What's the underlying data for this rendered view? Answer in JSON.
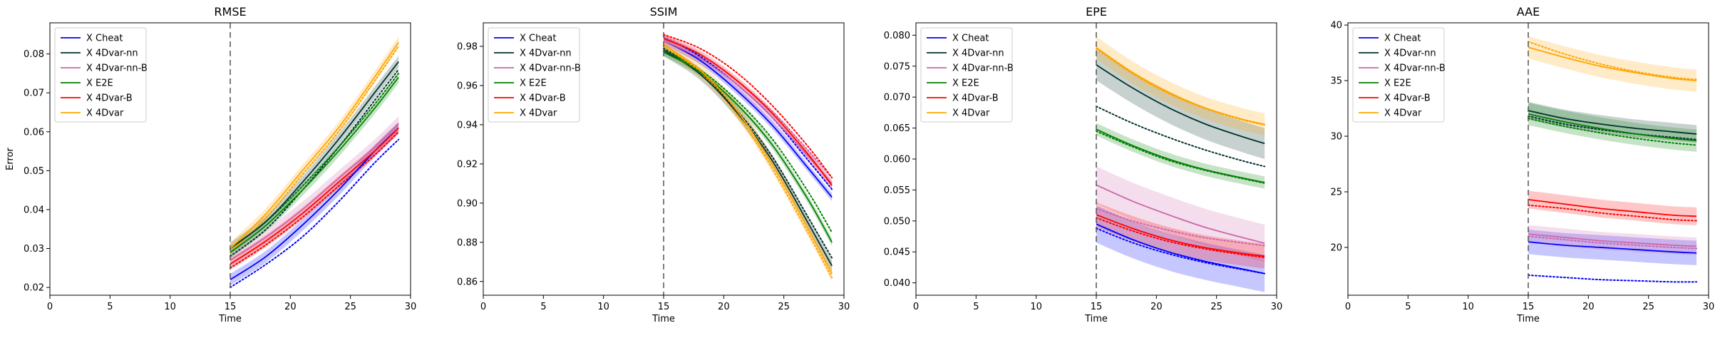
{
  "colors": {
    "Cheat": "#0000ff",
    "4Dvar-nn": "#00332b",
    "4Dvar-nn-B": "#cc66aa",
    "E2E": "#008000",
    "4Dvar-B": "#ff0000",
    "4Dvar": "#ffa500"
  },
  "chart_data": [
    {
      "type": "line",
      "title": "RMSE",
      "xlabel": "Time",
      "ylabel": "Error",
      "xlim": [
        0,
        30
      ],
      "ylim": [
        0.018,
        0.088
      ],
      "xticks": [
        0,
        5,
        10,
        15,
        20,
        25,
        30
      ],
      "yticks": [
        0.02,
        0.03,
        0.04,
        0.05,
        0.06,
        0.07,
        0.08
      ],
      "ytick_labels": [
        "0.02",
        "0.03",
        "0.04",
        "0.05",
        "0.06",
        "0.07",
        "0.08"
      ],
      "vline_x": 15,
      "legend": [
        "X Cheat",
        "X 4Dvar-nn",
        "X 4Dvar-nn-B",
        "X E2E",
        "X 4Dvar-B",
        "X 4Dvar"
      ],
      "legend_position": "upper-left",
      "x": [
        15,
        18,
        21,
        24,
        27,
        29
      ],
      "series": [
        {
          "key": "Cheat",
          "values": [
            0.022,
            0.028,
            0.036,
            0.045,
            0.055,
            0.061
          ],
          "dotted": [
            0.02,
            0.026,
            0.033,
            0.042,
            0.052,
            0.058
          ],
          "band": 0.0015
        },
        {
          "key": "4Dvar-nn",
          "values": [
            0.03,
            0.037,
            0.047,
            0.058,
            0.07,
            0.078
          ],
          "dotted": [
            0.028,
            0.035,
            0.045,
            0.056,
            0.068,
            0.076
          ],
          "band": 0.0015
        },
        {
          "key": "4Dvar-nn-B",
          "values": [
            0.027,
            0.033,
            0.04,
            0.048,
            0.056,
            0.062
          ],
          "dotted": [
            0.025,
            0.031,
            0.038,
            0.046,
            0.054,
            0.06
          ],
          "band": 0.002
        },
        {
          "key": "E2E",
          "values": [
            0.029,
            0.036,
            0.045,
            0.055,
            0.066,
            0.074
          ],
          "dotted": [
            0.03,
            0.037,
            0.046,
            0.056,
            0.067,
            0.075
          ],
          "band": 0.0015
        },
        {
          "key": "4Dvar-B",
          "values": [
            0.026,
            0.032,
            0.039,
            0.047,
            0.055,
            0.061
          ],
          "dotted": [
            0.025,
            0.031,
            0.038,
            0.046,
            0.054,
            0.06
          ],
          "band": 0.0015
        },
        {
          "key": "4Dvar",
          "values": [
            0.03,
            0.039,
            0.05,
            0.061,
            0.074,
            0.083
          ],
          "dotted": [
            0.029,
            0.038,
            0.049,
            0.06,
            0.073,
            0.082
          ],
          "band": 0.0015
        }
      ]
    },
    {
      "type": "line",
      "title": "SSIM",
      "xlabel": "Time",
      "ylabel": "",
      "xlim": [
        0,
        30
      ],
      "ylim": [
        0.853,
        0.992
      ],
      "xticks": [
        0,
        5,
        10,
        15,
        20,
        25,
        30
      ],
      "yticks": [
        0.86,
        0.88,
        0.9,
        0.92,
        0.94,
        0.96,
        0.98
      ],
      "ytick_labels": [
        "0.86",
        "0.88",
        "0.90",
        "0.92",
        "0.94",
        "0.96",
        "0.98"
      ],
      "vline_x": 15,
      "legend": [
        "X Cheat",
        "X 4Dvar-nn",
        "X 4Dvar-nn-B",
        "X E2E",
        "X 4Dvar-B",
        "X 4Dvar"
      ],
      "legend_position": "upper-left",
      "x": [
        15,
        18,
        21,
        24,
        27,
        29
      ],
      "series": [
        {
          "key": "Cheat",
          "values": [
            0.983,
            0.973,
            0.958,
            0.94,
            0.918,
            0.903
          ],
          "dotted": [
            0.985,
            0.975,
            0.961,
            0.944,
            0.922,
            0.907
          ],
          "band": 0.002
        },
        {
          "key": "4Dvar-nn",
          "values": [
            0.978,
            0.966,
            0.947,
            0.922,
            0.89,
            0.868
          ],
          "dotted": [
            0.979,
            0.967,
            0.948,
            0.924,
            0.893,
            0.872
          ],
          "band": 0.003
        },
        {
          "key": "4Dvar-nn-B",
          "values": [
            0.983,
            0.974,
            0.961,
            0.944,
            0.924,
            0.91
          ],
          "dotted": [
            0.985,
            0.976,
            0.963,
            0.947,
            0.927,
            0.913
          ],
          "band": 0.003
        },
        {
          "key": "E2E",
          "values": [
            0.977,
            0.967,
            0.951,
            0.93,
            0.902,
            0.88
          ],
          "dotted": [
            0.978,
            0.968,
            0.953,
            0.933,
            0.906,
            0.885
          ],
          "band": 0.002
        },
        {
          "key": "4Dvar-B",
          "values": [
            0.984,
            0.976,
            0.963,
            0.946,
            0.925,
            0.909
          ],
          "dotted": [
            0.986,
            0.979,
            0.967,
            0.95,
            0.929,
            0.913
          ],
          "band": 0.002
        },
        {
          "key": "4Dvar",
          "values": [
            0.981,
            0.968,
            0.948,
            0.92,
            0.887,
            0.864
          ],
          "dotted": [
            0.98,
            0.967,
            0.946,
            0.918,
            0.885,
            0.862
          ],
          "band": 0.004
        }
      ]
    },
    {
      "type": "line",
      "title": "EPE",
      "xlabel": "Time",
      "ylabel": "",
      "xlim": [
        0,
        30
      ],
      "ylim": [
        0.038,
        0.082
      ],
      "xticks": [
        0,
        5,
        10,
        15,
        20,
        25,
        30
      ],
      "yticks": [
        0.04,
        0.045,
        0.05,
        0.055,
        0.06,
        0.065,
        0.07,
        0.075,
        0.08
      ],
      "ytick_labels": [
        "0.040",
        "0.045",
        "0.050",
        "0.055",
        "0.060",
        "0.065",
        "0.070",
        "0.075",
        "0.080"
      ],
      "vline_x": 15,
      "legend": [
        "X Cheat",
        "X 4Dvar-nn",
        "X 4Dvar-nn-B",
        "X E2E",
        "X 4Dvar-B",
        "X 4Dvar"
      ],
      "legend_position": "upper-left",
      "x": [
        15,
        18,
        21,
        24,
        27,
        29
      ],
      "series": [
        {
          "key": "Cheat",
          "values": [
            0.0495,
            0.047,
            0.045,
            0.0435,
            0.0423,
            0.0415
          ],
          "dotted": [
            0.0488,
            0.0465,
            0.0447,
            0.0433,
            0.0422,
            0.0415
          ],
          "band": 0.003
        },
        {
          "key": "4Dvar-nn",
          "values": [
            0.0752,
            0.0715,
            0.0683,
            0.0657,
            0.0637,
            0.0625
          ],
          "dotted": [
            0.0685,
            0.0658,
            0.0635,
            0.0615,
            0.0598,
            0.0588
          ],
          "band": 0.0025
        },
        {
          "key": "4Dvar-nn-B",
          "values": [
            0.0558,
            0.0532,
            0.051,
            0.049,
            0.0474,
            0.0464
          ],
          "dotted": [
            0.052,
            0.05,
            0.0485,
            0.0473,
            0.0465,
            0.046
          ],
          "band": 0.003
        },
        {
          "key": "E2E",
          "values": [
            0.0648,
            0.0622,
            0.06,
            0.0583,
            0.057,
            0.0562
          ],
          "dotted": [
            0.0645,
            0.062,
            0.0598,
            0.0582,
            0.0569,
            0.0561
          ],
          "band": 0.001
        },
        {
          "key": "4Dvar-B",
          "values": [
            0.051,
            0.0488,
            0.047,
            0.0457,
            0.0448,
            0.0443
          ],
          "dotted": [
            0.0505,
            0.0484,
            0.0467,
            0.0455,
            0.0446,
            0.0441
          ],
          "band": 0.002
        },
        {
          "key": "4Dvar",
          "values": [
            0.078,
            0.074,
            0.0708,
            0.0683,
            0.0665,
            0.0656
          ],
          "dotted": [
            0.0778,
            0.0738,
            0.0706,
            0.0682,
            0.0664,
            0.0655
          ],
          "band": 0.0018
        }
      ]
    },
    {
      "type": "line",
      "title": "AAE",
      "xlabel": "Time",
      "ylabel": "",
      "xlim": [
        0,
        30
      ],
      "ylim": [
        15.7,
        40.2
      ],
      "xticks": [
        0,
        5,
        10,
        15,
        20,
        25,
        30
      ],
      "yticks": [
        20,
        25,
        30,
        35,
        40
      ],
      "ytick_labels": [
        "20",
        "25",
        "30",
        "35",
        "40"
      ],
      "vline_x": 15,
      "legend": [
        "X Cheat",
        "X 4Dvar-nn",
        "X 4Dvar-nn-B",
        "X E2E",
        "X 4Dvar-B",
        "X 4Dvar"
      ],
      "legend_position": "upper-left",
      "x": [
        15,
        18,
        21,
        24,
        27,
        29
      ],
      "series": [
        {
          "key": "Cheat",
          "values": [
            20.5,
            20.2,
            20.0,
            19.8,
            19.6,
            19.5
          ],
          "dotted": [
            17.5,
            17.3,
            17.1,
            17.0,
            16.9,
            16.9
          ],
          "band": 1.1
        },
        {
          "key": "4Dvar-nn",
          "values": [
            32.3,
            31.6,
            31.1,
            30.7,
            30.4,
            30.2
          ],
          "dotted": [
            31.8,
            31.1,
            30.6,
            30.2,
            29.9,
            29.7
          ],
          "band": 0.8
        },
        {
          "key": "4Dvar-nn-B",
          "values": [
            21.2,
            20.9,
            20.6,
            20.4,
            20.2,
            20.1
          ],
          "dotted": [
            21.0,
            20.7,
            20.4,
            20.2,
            20.0,
            19.9
          ],
          "band": 0.8
        },
        {
          "key": "E2E",
          "values": [
            32.0,
            31.3,
            30.7,
            30.2,
            29.8,
            29.6
          ],
          "dotted": [
            31.6,
            30.9,
            30.3,
            29.8,
            29.4,
            29.2
          ],
          "band": 1.0
        },
        {
          "key": "4Dvar-B",
          "values": [
            24.3,
            23.9,
            23.5,
            23.2,
            22.9,
            22.8
          ],
          "dotted": [
            23.8,
            23.5,
            23.1,
            22.8,
            22.5,
            22.4
          ],
          "band": 0.8
        },
        {
          "key": "4Dvar",
          "values": [
            38.0,
            37.1,
            36.3,
            35.7,
            35.2,
            35.0
          ],
          "dotted": [
            38.5,
            37.4,
            36.5,
            35.8,
            35.3,
            35.1
          ],
          "band": 1.0
        }
      ]
    }
  ]
}
